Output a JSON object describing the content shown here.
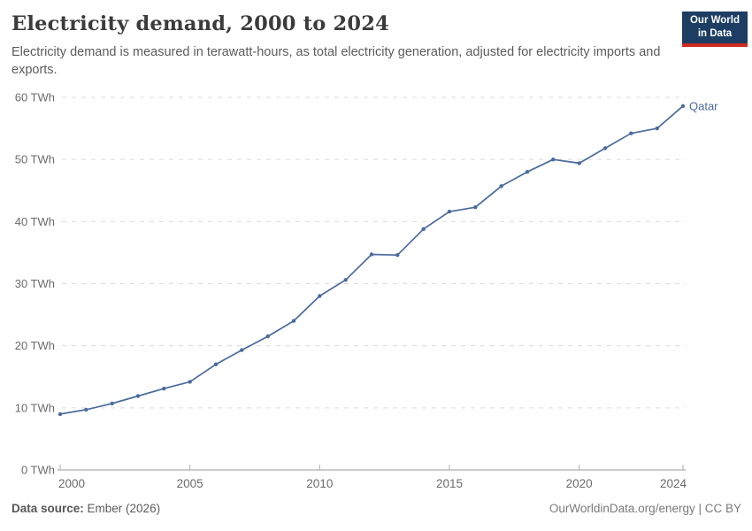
{
  "header": {
    "title": "Electricity demand, 2000 to 2024",
    "subtitle": "Electricity demand is measured in terawatt-hours, as total electricity generation, adjusted for electricity imports and exports."
  },
  "logo": {
    "line1": "Our World",
    "line2": "in Data",
    "bg_color": "#1D3D63",
    "bar_color": "#CE2A20"
  },
  "chart_data": {
    "type": "line",
    "title": "Electricity demand, 2000 to 2024",
    "xlabel": "",
    "ylabel": "",
    "unit": "TWh",
    "x": [
      2000,
      2001,
      2002,
      2003,
      2004,
      2005,
      2006,
      2007,
      2008,
      2009,
      2010,
      2011,
      2012,
      2013,
      2014,
      2015,
      2016,
      2017,
      2018,
      2019,
      2020,
      2021,
      2022,
      2023,
      2024
    ],
    "series": [
      {
        "name": "Qatar",
        "color": "#4C6A9C",
        "values": [
          9.0,
          9.7,
          10.7,
          11.9,
          13.1,
          14.2,
          17.0,
          19.3,
          21.5,
          24.0,
          28.0,
          30.6,
          34.7,
          34.6,
          38.8,
          41.6,
          42.3,
          45.7,
          48.0,
          50.0,
          49.4,
          51.8,
          54.2,
          55.0,
          58.6
        ]
      }
    ],
    "ylim": [
      0,
      60
    ],
    "yticks": [
      0,
      10,
      20,
      30,
      40,
      50,
      60
    ],
    "ytick_suffix": " TWh",
    "xticks": [
      2000,
      2005,
      2010,
      2015,
      2020,
      2024
    ],
    "grid": "horizontal-dashed",
    "legend_position": "end-of-line-label",
    "end_label": "Qatar"
  },
  "footer": {
    "source_label": "Data source:",
    "source_value": " Ember (2026)",
    "right_text": "OurWorldinData.org/energy | CC BY"
  }
}
